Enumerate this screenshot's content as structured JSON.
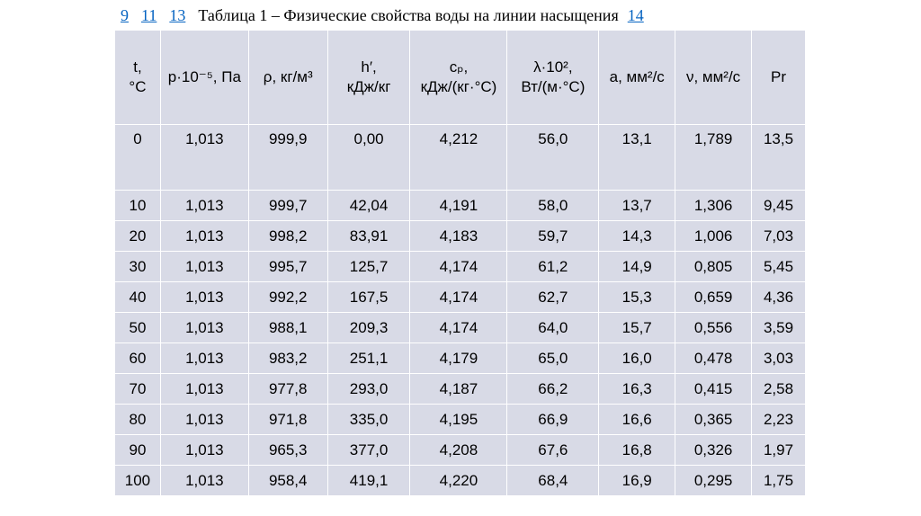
{
  "nav": {
    "links": [
      "9",
      "11",
      "13"
    ],
    "title": "Таблица 1 – Физические свойства воды на линии насыщения",
    "next_link": "14"
  },
  "table": {
    "headers": [
      {
        "l1": "t,",
        "l2": "°C"
      },
      {
        "l1": "p·10⁻⁵, Па",
        "l2": ""
      },
      {
        "l1": "ρ, кг/м³",
        "l2": ""
      },
      {
        "l1": "h′,",
        "l2": "кДж/кг"
      },
      {
        "l1": "cₚ,",
        "l2": "кДж/(кг·°C)"
      },
      {
        "l1": "λ·10²,",
        "l2": "Вт/(м·°C)"
      },
      {
        "l1": "a, мм²/c",
        "l2": ""
      },
      {
        "l1": "ν, мм²/c",
        "l2": ""
      },
      {
        "l1": "Pr",
        "l2": ""
      }
    ],
    "rows": [
      [
        "0",
        "1,013",
        "999,9",
        "0,00",
        "4,212",
        "56,0",
        "13,1",
        "1,789",
        "13,5"
      ],
      [
        "10",
        "1,013",
        "999,7",
        "42,04",
        "4,191",
        "58,0",
        "13,7",
        "1,306",
        "9,45"
      ],
      [
        "20",
        "1,013",
        "998,2",
        "83,91",
        "4,183",
        "59,7",
        "14,3",
        "1,006",
        "7,03"
      ],
      [
        "30",
        "1,013",
        "995,7",
        "125,7",
        "4,174",
        "61,2",
        "14,9",
        "0,805",
        "5,45"
      ],
      [
        "40",
        "1,013",
        "992,2",
        "167,5",
        "4,174",
        "62,7",
        "15,3",
        "0,659",
        "4,36"
      ],
      [
        "50",
        "1,013",
        "988,1",
        "209,3",
        "4,174",
        "64,0",
        "15,7",
        "0,556",
        "3,59"
      ],
      [
        "60",
        "1,013",
        "983,2",
        "251,1",
        "4,179",
        "65,0",
        "16,0",
        "0,478",
        "3,03"
      ],
      [
        "70",
        "1,013",
        "977,8",
        "293,0",
        "4,187",
        "66,2",
        "16,3",
        "0,415",
        "2,58"
      ],
      [
        "80",
        "1,013",
        "971,8",
        "335,0",
        "4,195",
        "66,9",
        "16,6",
        "0,365",
        "2,23"
      ],
      [
        "90",
        "1,013",
        "965,3",
        "377,0",
        "4,208",
        "67,6",
        "16,8",
        "0,326",
        "1,97"
      ],
      [
        "100",
        "1,013",
        "958,4",
        "419,1",
        "4,220",
        "68,4",
        "16,9",
        "0,295",
        "1,75"
      ]
    ]
  },
  "colors": {
    "link": "#0563C1",
    "table_bg": "#D8DAE6",
    "border": "#FFFFFF"
  }
}
